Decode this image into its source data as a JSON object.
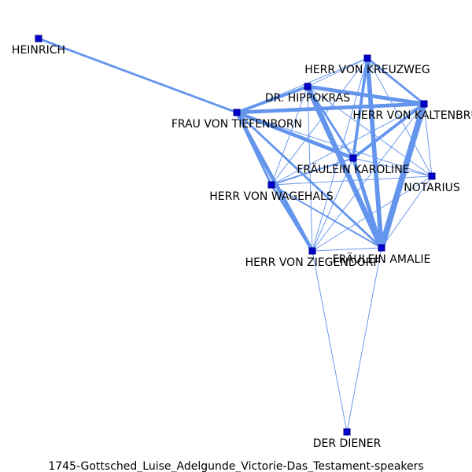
{
  "caption": "1745-Gottsched_Luise_Adelgunde_Victorie-Das_Testament-speakers",
  "colors": {
    "edge": "#6495ed",
    "node": "#0000cd",
    "node_border": "#00008b",
    "label": "#000000"
  },
  "nodes": [
    {
      "id": "heinrich",
      "label": "HEINRICH"
    },
    {
      "id": "kreuzweg",
      "label": "HERR VON KREUZWEG"
    },
    {
      "id": "hippokras",
      "label": "DR. HIPPOKRAS"
    },
    {
      "id": "kaltenbrunn",
      "label": "HERR VON KALTENBRUNN"
    },
    {
      "id": "tiefenborn",
      "label": "FRAU VON TIEFENBORN"
    },
    {
      "id": "karoline",
      "label": "FRÄULEIN KAROLINE"
    },
    {
      "id": "notarius",
      "label": "NOTARIUS"
    },
    {
      "id": "wagehals",
      "label": "HERR VON WAGEHALS"
    },
    {
      "id": "amalie",
      "label": "FRÄULEIN AMALIE"
    },
    {
      "id": "ziegendorf",
      "label": "HERR VON ZIEGENDORF"
    },
    {
      "id": "diener",
      "label": "DER DIENER"
    }
  ],
  "edges": [
    {
      "source": "heinrich",
      "target": "tiefenborn",
      "weight": 3
    },
    {
      "source": "tiefenborn",
      "target": "hippokras",
      "weight": 4
    },
    {
      "source": "tiefenborn",
      "target": "kreuzweg",
      "weight": 1
    },
    {
      "source": "tiefenborn",
      "target": "kaltenbrunn",
      "weight": 5
    },
    {
      "source": "tiefenborn",
      "target": "karoline",
      "weight": 5
    },
    {
      "source": "tiefenborn",
      "target": "wagehals",
      "weight": 3
    },
    {
      "source": "tiefenborn",
      "target": "ziegendorf",
      "weight": 5
    },
    {
      "source": "tiefenborn",
      "target": "amalie",
      "weight": 3
    },
    {
      "source": "tiefenborn",
      "target": "notarius",
      "weight": 1
    },
    {
      "source": "hippokras",
      "target": "kreuzweg",
      "weight": 1
    },
    {
      "source": "hippokras",
      "target": "kaltenbrunn",
      "weight": 5
    },
    {
      "source": "hippokras",
      "target": "karoline",
      "weight": 3
    },
    {
      "source": "hippokras",
      "target": "amalie",
      "weight": 7
    },
    {
      "source": "hippokras",
      "target": "ziegendorf",
      "weight": 1
    },
    {
      "source": "hippokras",
      "target": "wagehals",
      "weight": 1
    },
    {
      "source": "hippokras",
      "target": "notarius",
      "weight": 1
    },
    {
      "source": "kreuzweg",
      "target": "kaltenbrunn",
      "weight": 3
    },
    {
      "source": "kreuzweg",
      "target": "karoline",
      "weight": 4
    },
    {
      "source": "kreuzweg",
      "target": "amalie",
      "weight": 6
    },
    {
      "source": "kreuzweg",
      "target": "wagehals",
      "weight": 1
    },
    {
      "source": "kreuzweg",
      "target": "ziegendorf",
      "weight": 1
    },
    {
      "source": "kreuzweg",
      "target": "notarius",
      "weight": 1
    },
    {
      "source": "kaltenbrunn",
      "target": "karoline",
      "weight": 4
    },
    {
      "source": "kaltenbrunn",
      "target": "amalie",
      "weight": 8
    },
    {
      "source": "kaltenbrunn",
      "target": "notarius",
      "weight": 1
    },
    {
      "source": "kaltenbrunn",
      "target": "wagehals",
      "weight": 1
    },
    {
      "source": "kaltenbrunn",
      "target": "ziegendorf",
      "weight": 1
    },
    {
      "source": "karoline",
      "target": "amalie",
      "weight": 5
    },
    {
      "source": "karoline",
      "target": "wagehals",
      "weight": 2
    },
    {
      "source": "karoline",
      "target": "ziegendorf",
      "weight": 1
    },
    {
      "source": "karoline",
      "target": "notarius",
      "weight": 1
    },
    {
      "source": "wagehals",
      "target": "amalie",
      "weight": 2
    },
    {
      "source": "wagehals",
      "target": "ziegendorf",
      "weight": 3
    },
    {
      "source": "wagehals",
      "target": "notarius",
      "weight": 1
    },
    {
      "source": "ziegendorf",
      "target": "amalie",
      "weight": 1
    },
    {
      "source": "ziegendorf",
      "target": "notarius",
      "weight": 1
    },
    {
      "source": "amalie",
      "target": "notarius",
      "weight": 1
    },
    {
      "source": "diener",
      "target": "ziegendorf",
      "weight": 1
    },
    {
      "source": "diener",
      "target": "amalie",
      "weight": 1
    }
  ]
}
